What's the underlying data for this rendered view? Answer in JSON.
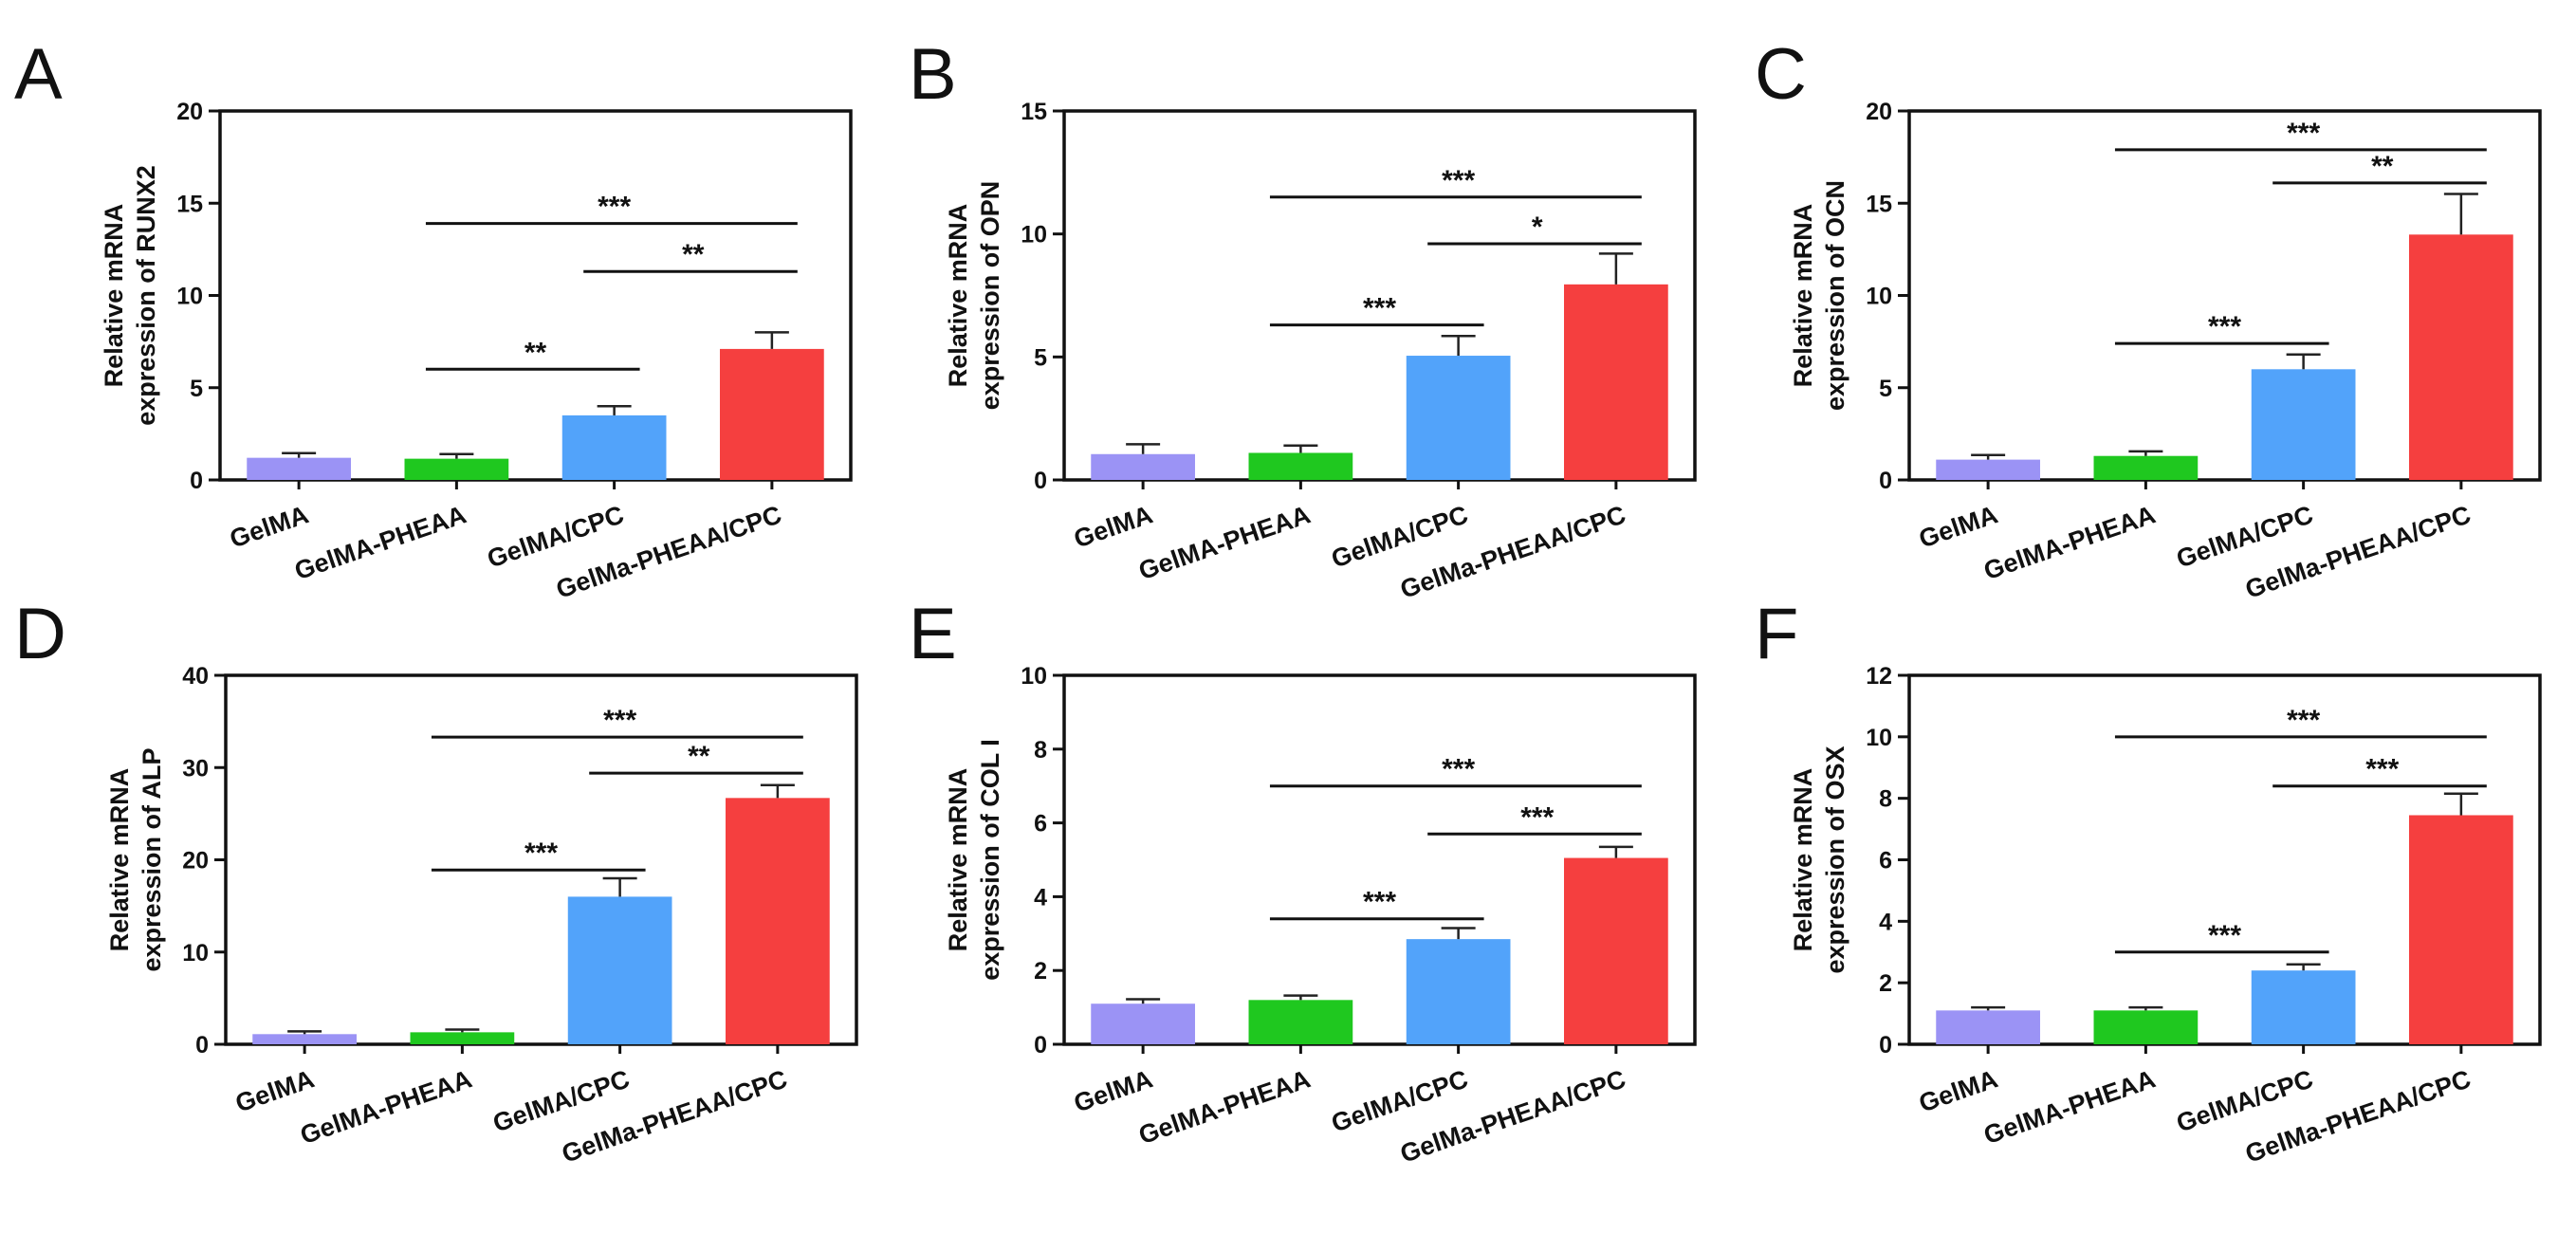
{
  "colors": {
    "GelMA": "#9b93f5",
    "GelMA-PHEAA": "#1fc81f",
    "GelMA/CPC": "#52a3fa",
    "GelMa-PHEAA/CPC": "#f53f3f"
  },
  "chart_data": [
    {
      "panel": "A",
      "type": "bar",
      "ylabel": [
        "Relative mRNA",
        "expression of RUNX2"
      ],
      "categories": [
        "GelMA",
        "GelMA-PHEAA",
        "GelMA/CPC",
        "GelMa-PHEAA/CPC"
      ],
      "values": [
        1.2,
        1.15,
        3.5,
        7.1
      ],
      "errors": [
        0.25,
        0.25,
        0.5,
        0.9
      ],
      "ylim": [
        0,
        20
      ],
      "yticks": [
        0,
        5,
        10,
        15,
        20
      ],
      "significance": [
        {
          "from": 1,
          "to": 2,
          "label": "**",
          "y": 6.0
        },
        {
          "from": 2,
          "to": 3,
          "label": "**",
          "y": 11.3
        },
        {
          "from": 1,
          "to": 3,
          "label": "***",
          "y": 13.9
        }
      ]
    },
    {
      "panel": "B",
      "type": "bar",
      "ylabel": [
        "Relative mRNA",
        "expression of OPN"
      ],
      "categories": [
        "GelMA",
        "GelMA-PHEAA",
        "GelMA/CPC",
        "GelMa-PHEAA/CPC"
      ],
      "values": [
        1.05,
        1.1,
        5.05,
        7.95
      ],
      "errors": [
        0.4,
        0.3,
        0.8,
        1.25
      ],
      "ylim": [
        0,
        15
      ],
      "yticks": [
        0,
        5,
        10,
        15
      ],
      "significance": [
        {
          "from": 1,
          "to": 2,
          "label": "***",
          "y": 6.3
        },
        {
          "from": 2,
          "to": 3,
          "label": "*",
          "y": 9.6
        },
        {
          "from": 1,
          "to": 3,
          "label": "***",
          "y": 11.5
        }
      ]
    },
    {
      "panel": "C",
      "type": "bar",
      "ylabel": [
        "Relative mRNA",
        "expression of OCN"
      ],
      "categories": [
        "GelMA",
        "GelMA-PHEAA",
        "GelMA/CPC",
        "GelMa-PHEAA/CPC"
      ],
      "values": [
        1.1,
        1.3,
        6.0,
        13.3
      ],
      "errors": [
        0.25,
        0.25,
        0.8,
        2.2
      ],
      "ylim": [
        0,
        20
      ],
      "yticks": [
        0,
        5,
        10,
        15,
        20
      ],
      "significance": [
        {
          "from": 1,
          "to": 2,
          "label": "***",
          "y": 7.4
        },
        {
          "from": 2,
          "to": 3,
          "label": "**",
          "y": 16.1
        },
        {
          "from": 1,
          "to": 3,
          "label": "***",
          "y": 17.9
        }
      ]
    },
    {
      "panel": "D",
      "type": "bar",
      "ylabel": [
        "Relative mRNA",
        "expression of ALP"
      ],
      "categories": [
        "GelMA",
        "GelMA-PHEAA",
        "GelMA/CPC",
        "GelMa-PHEAA/CPC"
      ],
      "values": [
        1.1,
        1.3,
        16.0,
        26.7
      ],
      "errors": [
        0.3,
        0.3,
        2.0,
        1.4
      ],
      "ylim": [
        0,
        40
      ],
      "yticks": [
        0,
        10,
        20,
        30,
        40
      ],
      "significance": [
        {
          "from": 1,
          "to": 2,
          "label": "***",
          "y": 18.9
        },
        {
          "from": 2,
          "to": 3,
          "label": "**",
          "y": 29.4
        },
        {
          "from": 1,
          "to": 3,
          "label": "***",
          "y": 33.3
        }
      ]
    },
    {
      "panel": "E",
      "type": "bar",
      "ylabel": [
        "Relative mRNA",
        "expression of COL I"
      ],
      "categories": [
        "GelMA",
        "GelMA-PHEAA",
        "GelMA/CPC",
        "GelMa-PHEAA/CPC"
      ],
      "values": [
        1.1,
        1.2,
        2.85,
        5.05
      ],
      "errors": [
        0.12,
        0.12,
        0.3,
        0.3
      ],
      "ylim": [
        0,
        10
      ],
      "yticks": [
        0,
        2,
        4,
        6,
        8,
        10
      ],
      "significance": [
        {
          "from": 1,
          "to": 2,
          "label": "***",
          "y": 3.4
        },
        {
          "from": 2,
          "to": 3,
          "label": "***",
          "y": 5.7
        },
        {
          "from": 1,
          "to": 3,
          "label": "***",
          "y": 7.0
        }
      ]
    },
    {
      "panel": "F",
      "type": "bar",
      "ylabel": [
        "Relative mRNA",
        "expression of OSX"
      ],
      "categories": [
        "GelMA",
        "GelMA-PHEAA",
        "GelMA/CPC",
        "GelMa-PHEAA/CPC"
      ],
      "values": [
        1.1,
        1.1,
        2.4,
        7.45
      ],
      "errors": [
        0.1,
        0.1,
        0.2,
        0.7
      ],
      "ylim": [
        0,
        12
      ],
      "yticks": [
        0,
        2,
        4,
        6,
        8,
        10,
        12
      ],
      "significance": [
        {
          "from": 1,
          "to": 2,
          "label": "***",
          "y": 3.0
        },
        {
          "from": 2,
          "to": 3,
          "label": "***",
          "y": 8.4
        },
        {
          "from": 1,
          "to": 3,
          "label": "***",
          "y": 10.0
        }
      ]
    }
  ]
}
